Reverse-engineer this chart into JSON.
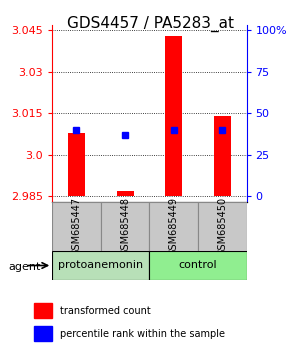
{
  "title": "GDS4457 / PA5283_at",
  "samples": [
    "GSM685447",
    "GSM685448",
    "GSM685449",
    "GSM685450"
  ],
  "red_values": [
    3.008,
    2.987,
    3.043,
    3.014
  ],
  "blue_values": [
    3.009,
    3.007,
    3.009,
    3.009
  ],
  "ymin": 2.983,
  "ymax": 3.047,
  "yticks_left": [
    2.985,
    3.0,
    3.015,
    3.03,
    3.045
  ],
  "yticks_right_labels": [
    "0",
    "25",
    "50",
    "75",
    "100%"
  ],
  "bar_base": 2.985,
  "x_positions": [
    0.5,
    1.5,
    2.5,
    3.5
  ],
  "bar_width": 0.35,
  "agent_label": "agent",
  "legend_red": "transformed count",
  "legend_blue": "percentile rank within the sample",
  "title_fontsize": 11,
  "tick_fontsize": 8,
  "sample_label_fontsize": 7,
  "group_label_fontsize": 8
}
